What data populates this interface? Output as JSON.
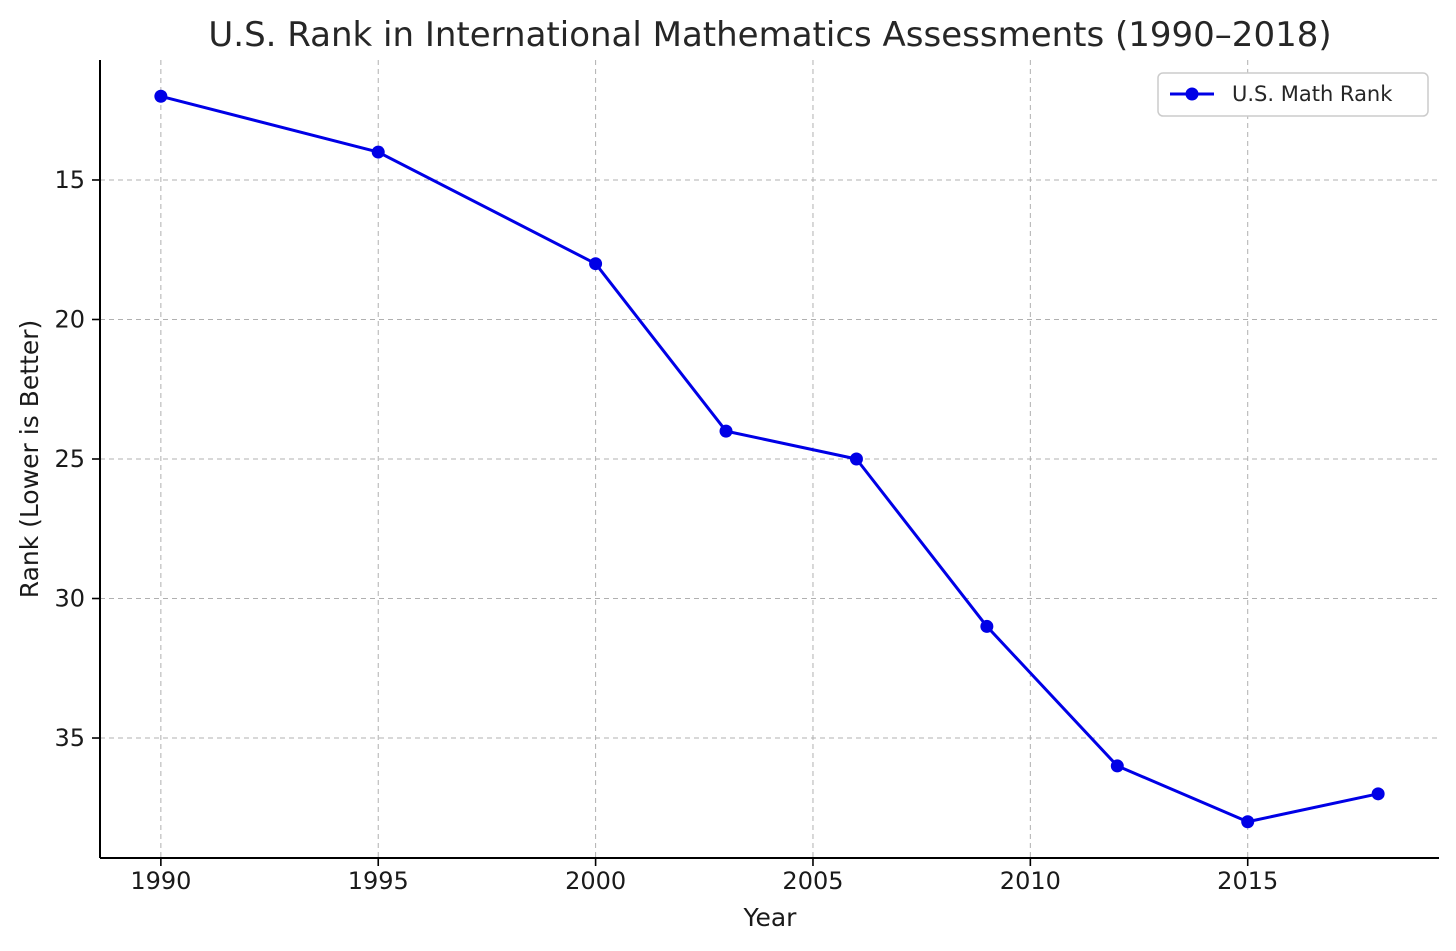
{
  "chart_data": {
    "type": "line",
    "title": "U.S. Rank in International Mathematics Assessments (1990–2018)",
    "xlabel": "Year",
    "ylabel": "Rank (Lower is Better)",
    "x": [
      1990,
      1995,
      2000,
      2003,
      2006,
      2009,
      2012,
      2015,
      2018
    ],
    "series": [
      {
        "name": "U.S. Math Rank",
        "color": "#0000e6",
        "marker": "circle",
        "values": [
          12,
          14,
          18,
          24,
          25,
          31,
          36,
          38,
          37
        ]
      }
    ],
    "x_ticks": [
      1990,
      1995,
      2000,
      2005,
      2010,
      2015
    ],
    "y_ticks": [
      15,
      20,
      25,
      30,
      35
    ],
    "xlim": [
      1988.6,
      2019.4
    ],
    "ylim": [
      10.7,
      39.3
    ],
    "y_inverted": true,
    "grid": true,
    "legend_position": "top-right"
  }
}
